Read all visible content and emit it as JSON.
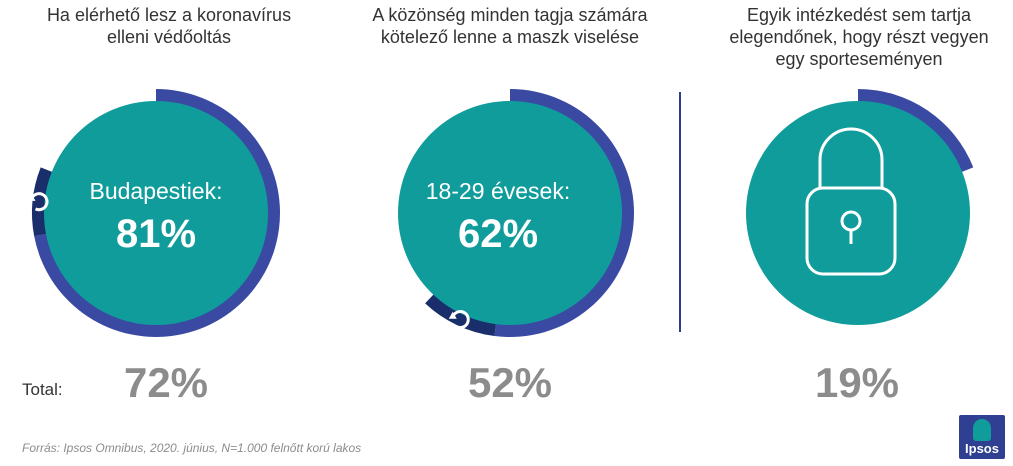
{
  "panels": [
    {
      "heading_lines": [
        "Ha elérhető lesz a koronavírus",
        "elleni védőoltás"
      ],
      "center_label": "Budapestiek:",
      "center_value": "81%",
      "total_label": "Total:",
      "total_value": "72%",
      "icon": "refresh-icon"
    },
    {
      "heading_lines": [
        "A közönség minden tagja számára",
        "kötelező lenne a maszk viselése"
      ],
      "center_label": "18-29 évesek:",
      "center_value": "62%",
      "total_label": "",
      "total_value": "52%",
      "icon": "refresh-icon"
    },
    {
      "heading_lines": [
        "Egyik intézkedést sem tartja",
        "elegendőnek, hogy részt vegyen",
        "egy sporteseményen"
      ],
      "center_label": "",
      "center_value": "",
      "total_label": "",
      "total_value": "19%",
      "icon": "padlock-icon"
    }
  ],
  "footer": "Forrás: Ipsos Omnibus, 2020. június, N=1.000 felnőtt korú lakos",
  "logo_text": "Ipsos",
  "colors": {
    "teal": "#119c9c",
    "ring": "#3a4aa3",
    "dark_tab": "#1a2e6b",
    "total_text": "#8c8c8c"
  },
  "chart_data": [
    {
      "type": "pie",
      "title": "Ha elérhető lesz a koronavírus elleni védőoltás",
      "series": [
        {
          "name": "Total",
          "values": [
            72
          ]
        },
        {
          "name": "Budapestiek",
          "values": [
            81
          ]
        }
      ]
    },
    {
      "type": "pie",
      "title": "A közönség minden tagja számára kötelező lenne a maszk viselése",
      "series": [
        {
          "name": "Total",
          "values": [
            52
          ]
        },
        {
          "name": "18-29 évesek",
          "values": [
            62
          ]
        }
      ]
    },
    {
      "type": "pie",
      "title": "Egyik intézkedést sem tartja elegendőnek, hogy részt vegyen egy sporteseményen",
      "series": [
        {
          "name": "Total",
          "values": [
            19
          ]
        }
      ]
    }
  ]
}
